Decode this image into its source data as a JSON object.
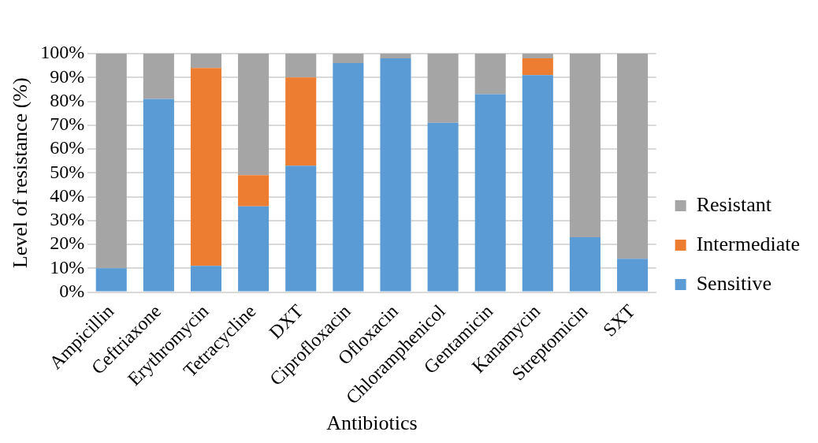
{
  "chart_data": {
    "type": "bar",
    "stacked": true,
    "categories": [
      "Ampicillin",
      "Ceftriaxone",
      "Erythromycin",
      "Tetracycline",
      "DXT",
      "Ciprofloxacin",
      "Ofloxacin",
      "Chloramphenicol",
      "Gentamicin",
      "Kanamycin",
      "Streptomicin",
      "SXT"
    ],
    "series": [
      {
        "name": "Sensitive",
        "color": "#5b9bd5",
        "values": [
          10,
          81,
          11,
          36,
          53,
          96,
          98,
          71,
          83,
          91,
          23,
          14
        ]
      },
      {
        "name": "Intermediate",
        "color": "#ed7d31",
        "values": [
          0,
          0,
          83,
          13,
          37,
          0,
          0,
          0,
          0,
          7,
          0,
          0
        ]
      },
      {
        "name": "Resistant",
        "color": "#a5a5a5",
        "values": [
          90,
          19,
          6,
          51,
          10,
          4,
          2,
          29,
          17,
          2,
          77,
          86
        ]
      }
    ],
    "xlabel": "Antibiotics",
    "ylabel": "Level of resistance (%)",
    "ylim": [
      0,
      100
    ],
    "yticks": [
      {
        "value": 0,
        "label": "0%"
      },
      {
        "value": 10,
        "label": "10%"
      },
      {
        "value": 20,
        "label": "20%"
      },
      {
        "value": 30,
        "label": "30%"
      },
      {
        "value": 40,
        "label": "40%"
      },
      {
        "value": 50,
        "label": "50%"
      },
      {
        "value": 60,
        "label": "60%"
      },
      {
        "value": 70,
        "label": "70%"
      },
      {
        "value": 80,
        "label": "80%"
      },
      {
        "value": 90,
        "label": "90%"
      },
      {
        "value": 100,
        "label": "100%"
      }
    ],
    "grid": "y",
    "legend": "right"
  }
}
